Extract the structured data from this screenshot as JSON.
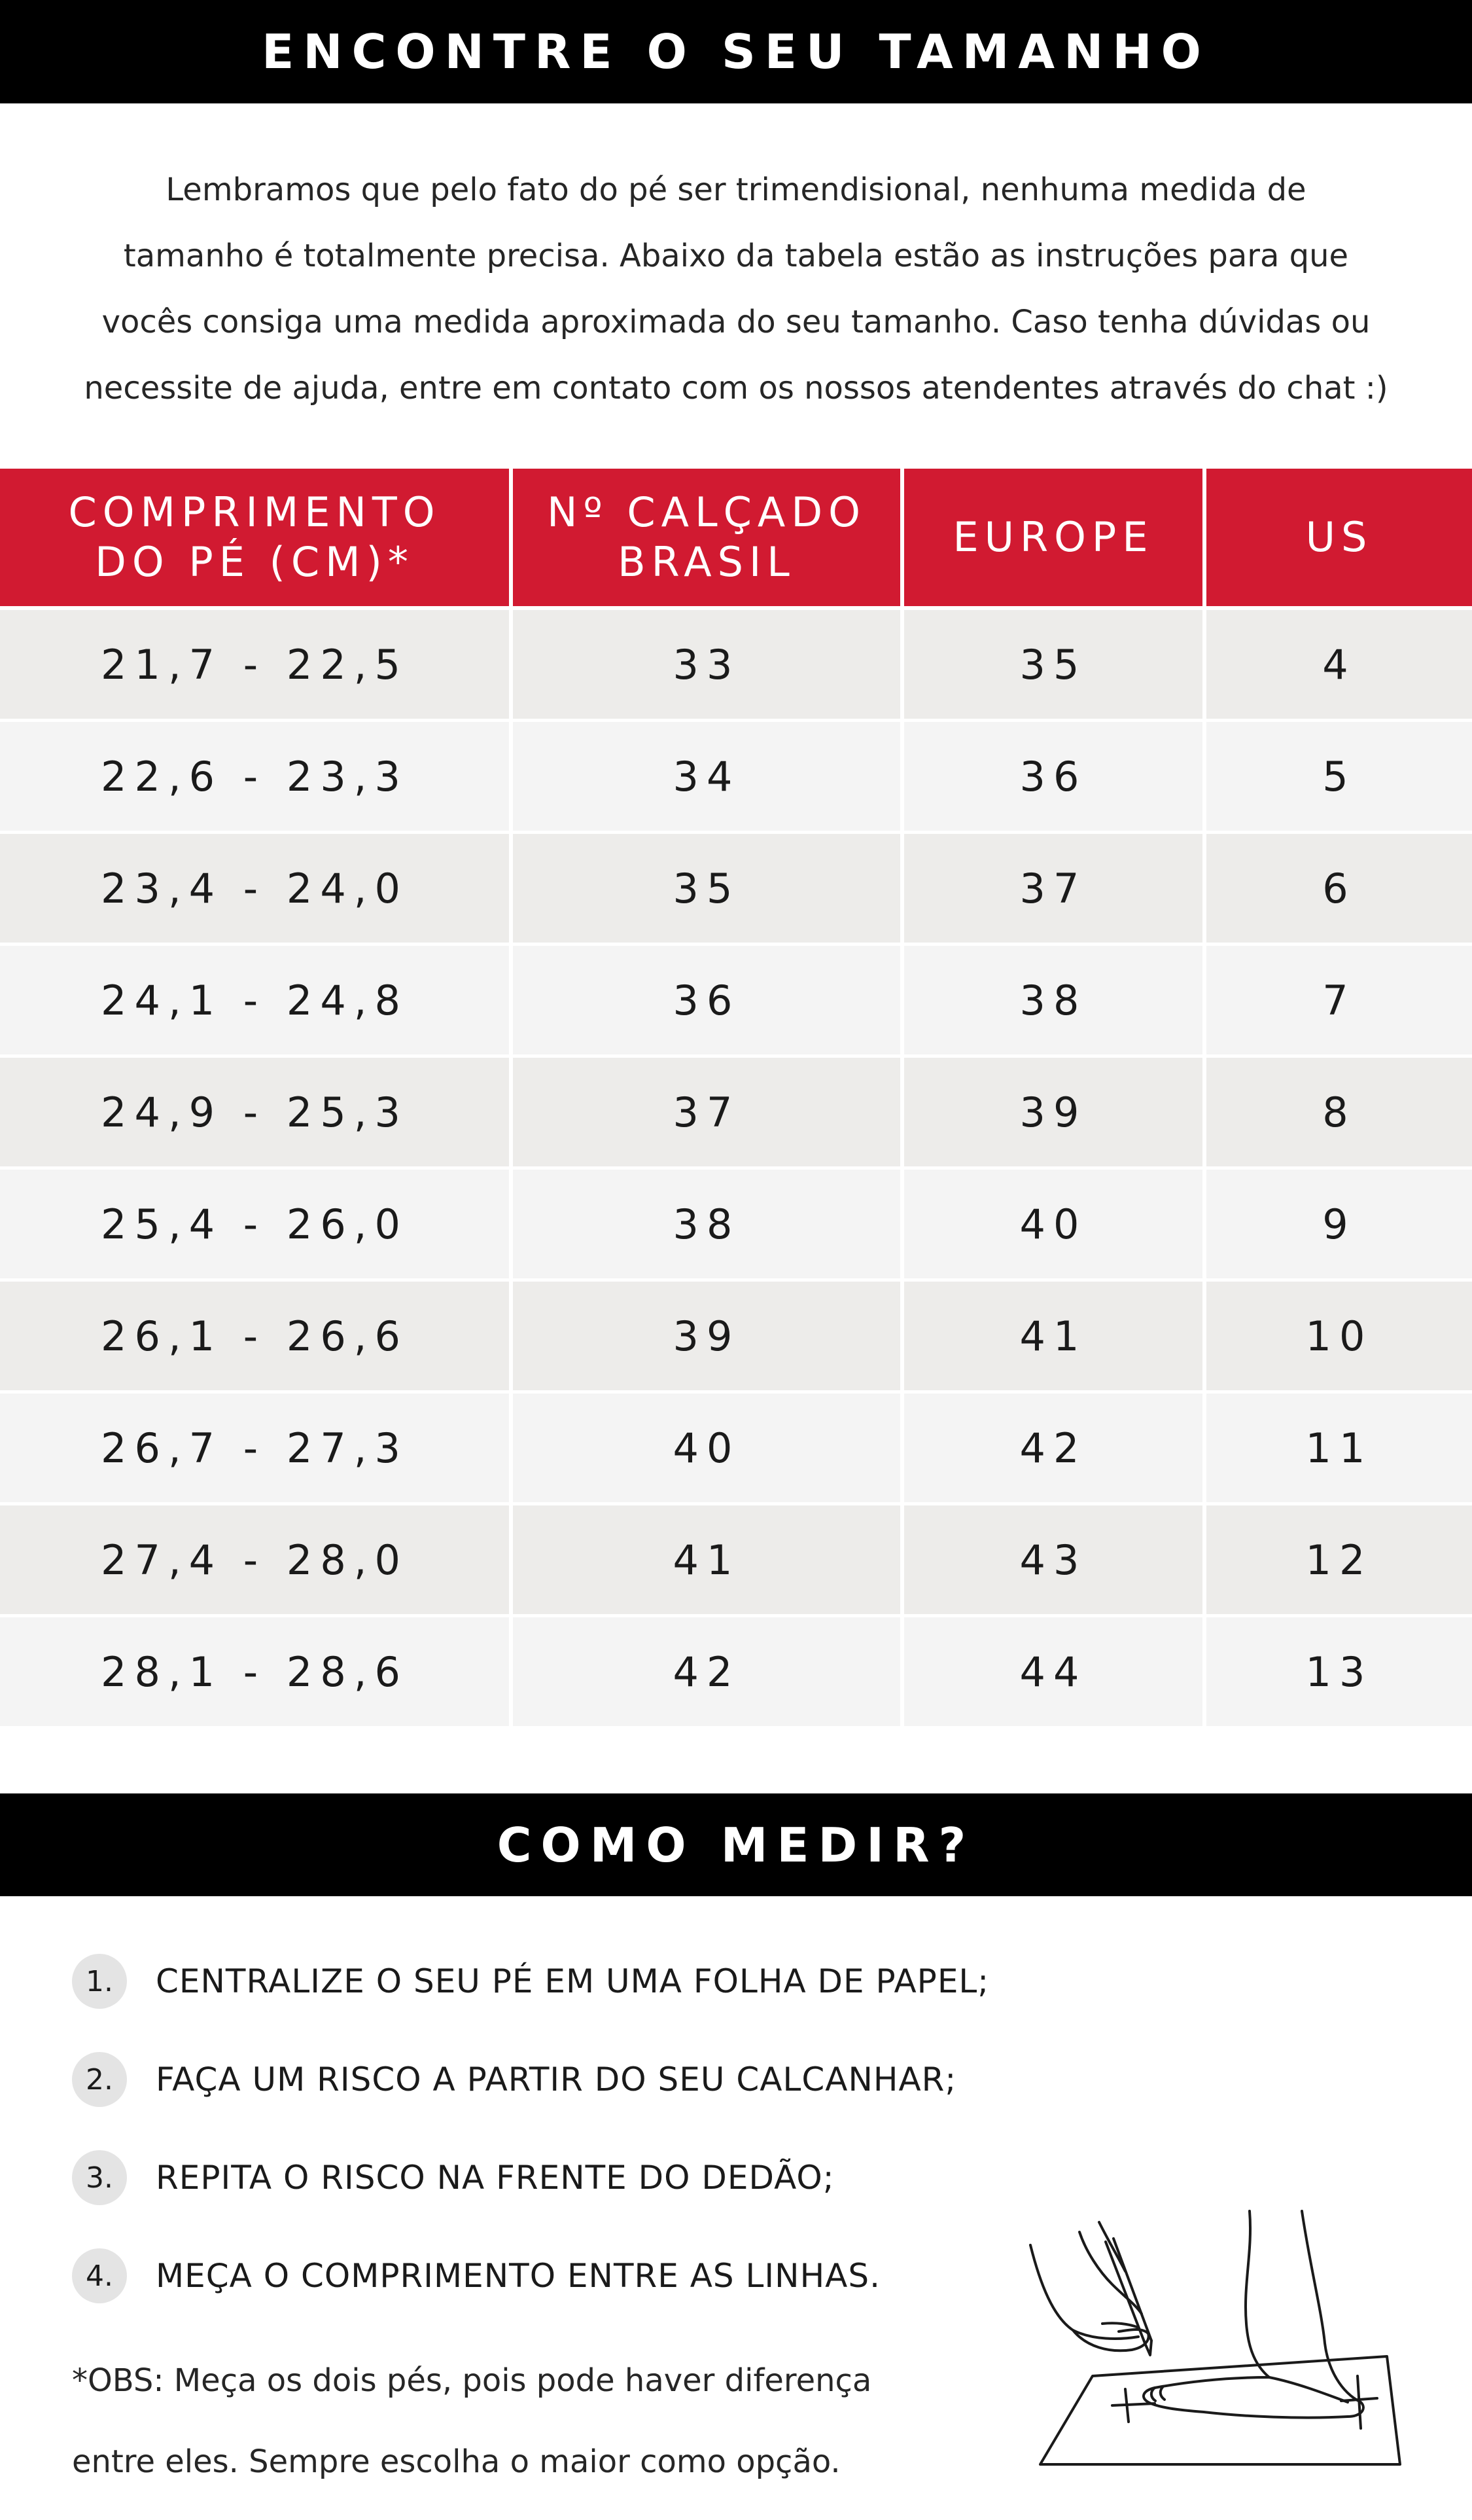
{
  "header": {
    "title": "ENCONTRE O SEU TAMANHO"
  },
  "intro": {
    "lines": [
      "Lembramos que pelo fato do pé ser trimendisional, nenhuma medida de",
      "tamanho é totalmente precisa. Abaixo da tabela estão as instruções para que",
      "vocês consiga uma medida aproximada do seu tamanho. Caso tenha dúvidas ou",
      "necessite de ajuda, entre em contato com os nossos atendentes através do chat :)"
    ]
  },
  "table": {
    "headers": [
      [
        "COMPRIMENTO",
        "DO PÉ (CM)*"
      ],
      [
        "Nº CALÇADO",
        "BRASIL"
      ],
      [
        "EUROPE"
      ],
      [
        "US"
      ]
    ],
    "rows": [
      [
        "21,7 - 22,5",
        "33",
        "35",
        "4"
      ],
      [
        "22,6 - 23,3",
        "34",
        "36",
        "5"
      ],
      [
        "23,4 - 24,0",
        "35",
        "37",
        "6"
      ],
      [
        "24,1 - 24,8",
        "36",
        "38",
        "7"
      ],
      [
        "24,9 - 25,3",
        "37",
        "39",
        "8"
      ],
      [
        "25,4 - 26,0",
        "38",
        "40",
        "9"
      ],
      [
        "26,1 - 26,6",
        "39",
        "41",
        "10"
      ],
      [
        "26,7 - 27,3",
        "40",
        "42",
        "11"
      ],
      [
        "27,4 - 28,0",
        "41",
        "43",
        "12"
      ],
      [
        "28,1 - 28,6",
        "42",
        "44",
        "13"
      ]
    ]
  },
  "how": {
    "title": "COMO MEDIR?",
    "steps": [
      {
        "num": "1.",
        "text": "CENTRALIZE O SEU PÉ EM UMA FOLHA DE PAPEL;"
      },
      {
        "num": "2.",
        "text": "FAÇA UM RISCO A PARTIR DO SEU CALCANHAR;"
      },
      {
        "num": "3.",
        "text": "REPITA O RISCO NA FRENTE DO DEDÃO;"
      },
      {
        "num": "4.",
        "text": "MEÇA O COMPRIMENTO ENTRE AS LINHAS."
      }
    ],
    "obs": [
      "*OBS: Meça os dois pés, pois pode haver diferença",
      "entre eles. Sempre escolha o maior como opção."
    ]
  },
  "colors": {
    "header_band": "#000000",
    "table_header": "#d11a31",
    "row_odd": "#edecea",
    "row_even": "#f4f4f4"
  },
  "icons": {
    "illustration": "foot-measuring-illustration"
  }
}
